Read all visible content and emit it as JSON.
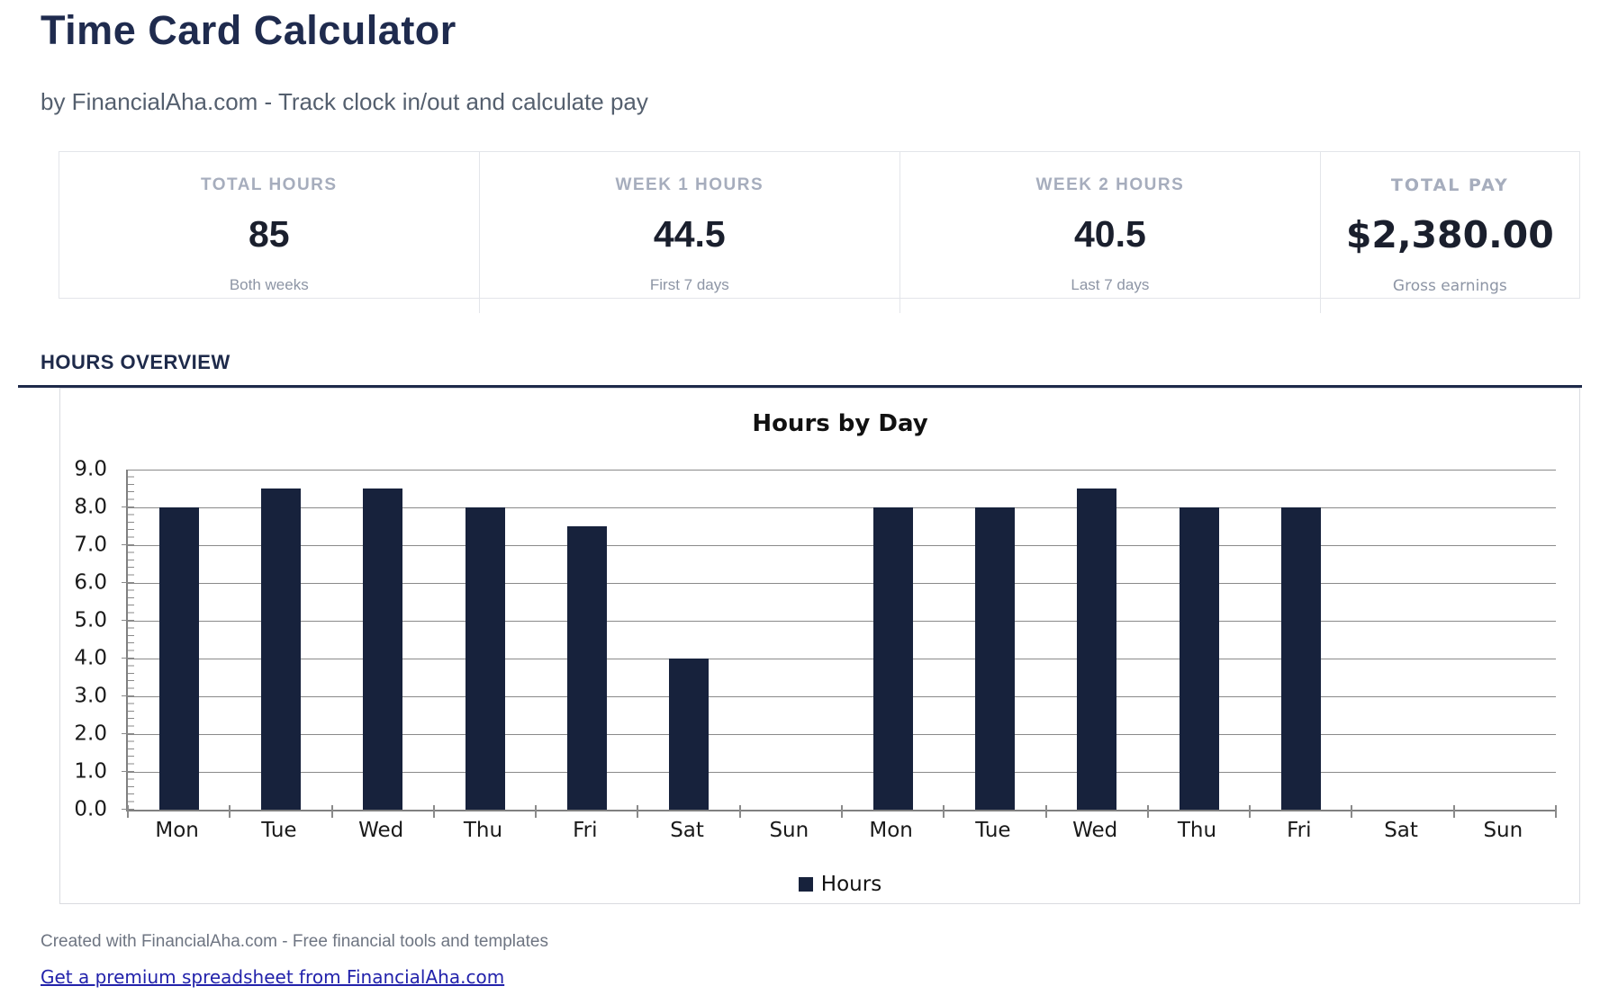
{
  "page": {
    "title": "Time Card Calculator",
    "subtitle": "by FinancialAha.com - Track clock in/out and calculate pay"
  },
  "stats": [
    {
      "label": "TOTAL HOURS",
      "value": "85",
      "sub": "Both weeks"
    },
    {
      "label": "WEEK 1 HOURS",
      "value": "44.5",
      "sub": "First 7 days"
    },
    {
      "label": "WEEK 2 HOURS",
      "value": "40.5",
      "sub": "Last 7 days"
    },
    {
      "label": "TOTAL PAY",
      "value": "$2,380.00",
      "sub": "Gross earnings"
    }
  ],
  "section": {
    "heading": "HOURS OVERVIEW"
  },
  "chart_data": {
    "type": "bar",
    "title": "Hours by Day",
    "categories": [
      "Mon",
      "Tue",
      "Wed",
      "Thu",
      "Fri",
      "Sat",
      "Sun",
      "Mon",
      "Tue",
      "Wed",
      "Thu",
      "Fri",
      "Sat",
      "Sun"
    ],
    "values": [
      8,
      8.5,
      8.5,
      8,
      7.5,
      4,
      0,
      8,
      8,
      8.5,
      8,
      8,
      0,
      0
    ],
    "series_name": "Hours",
    "ylim": [
      0,
      9
    ],
    "ytick_step": 1,
    "ytick_labels": [
      "0.0",
      "1.0",
      "2.0",
      "3.0",
      "4.0",
      "5.0",
      "6.0",
      "7.0",
      "8.0",
      "9.0"
    ],
    "grid": true,
    "legend_position": "bottom",
    "bar_color": "#17223c",
    "grid_color": "#8a8a8a"
  },
  "footer": {
    "credit": "Created with FinancialAha.com - Free financial tools and templates",
    "link_text": "Get a premium spreadsheet from FinancialAha.com"
  },
  "colors": {
    "heading": "#1f2b4e",
    "accent_rule": "#1e2a4a",
    "bar": "#17223c",
    "link": "#2222ab",
    "muted_label": "#a6adbd",
    "card_border": "#e3e5ea"
  }
}
